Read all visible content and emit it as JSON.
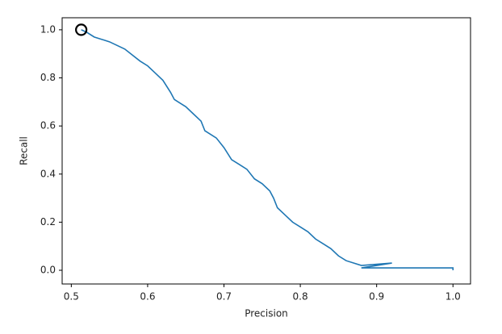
{
  "chart_data": {
    "type": "line",
    "xlabel": "Precision",
    "ylabel": "Recall",
    "xlim": [
      0.488,
      1.023
    ],
    "ylim": [
      -0.057,
      1.05
    ],
    "xticks": [
      0.5,
      0.6,
      0.7,
      0.8,
      0.9,
      {
        "value": 1,
        "label": "1.0"
      }
    ],
    "yticks": [
      {
        "value": 0,
        "label": "0.0"
      },
      0.2,
      0.4,
      0.6,
      0.8,
      {
        "value": 1,
        "label": "1.0"
      }
    ],
    "grid": false,
    "series": [
      {
        "color": "#1f77b4",
        "x": [
          0.513,
          0.52,
          0.53,
          0.55,
          0.57,
          0.59,
          0.6,
          0.61,
          0.62,
          0.63,
          0.635,
          0.65,
          0.66,
          0.67,
          0.675,
          0.69,
          0.7,
          0.71,
          0.72,
          0.73,
          0.74,
          0.75,
          0.76,
          0.765,
          0.77,
          0.78,
          0.79,
          0.8,
          0.81,
          0.82,
          0.83,
          0.84,
          0.85,
          0.86,
          0.88,
          0.92,
          0.88,
          0.96,
          1.0,
          1.0
        ],
        "values": [
          1.0,
          0.99,
          0.97,
          0.95,
          0.92,
          0.87,
          0.85,
          0.82,
          0.79,
          0.74,
          0.71,
          0.68,
          0.65,
          0.62,
          0.58,
          0.55,
          0.51,
          0.46,
          0.44,
          0.42,
          0.38,
          0.36,
          0.33,
          0.3,
          0.26,
          0.23,
          0.2,
          0.18,
          0.16,
          0.13,
          0.11,
          0.09,
          0.06,
          0.04,
          0.02,
          0.03,
          0.01,
          0.01,
          0.01,
          0.0
        ]
      }
    ],
    "highlight": {
      "x": 0.513,
      "y": 1.0,
      "color": "#000000"
    }
  }
}
